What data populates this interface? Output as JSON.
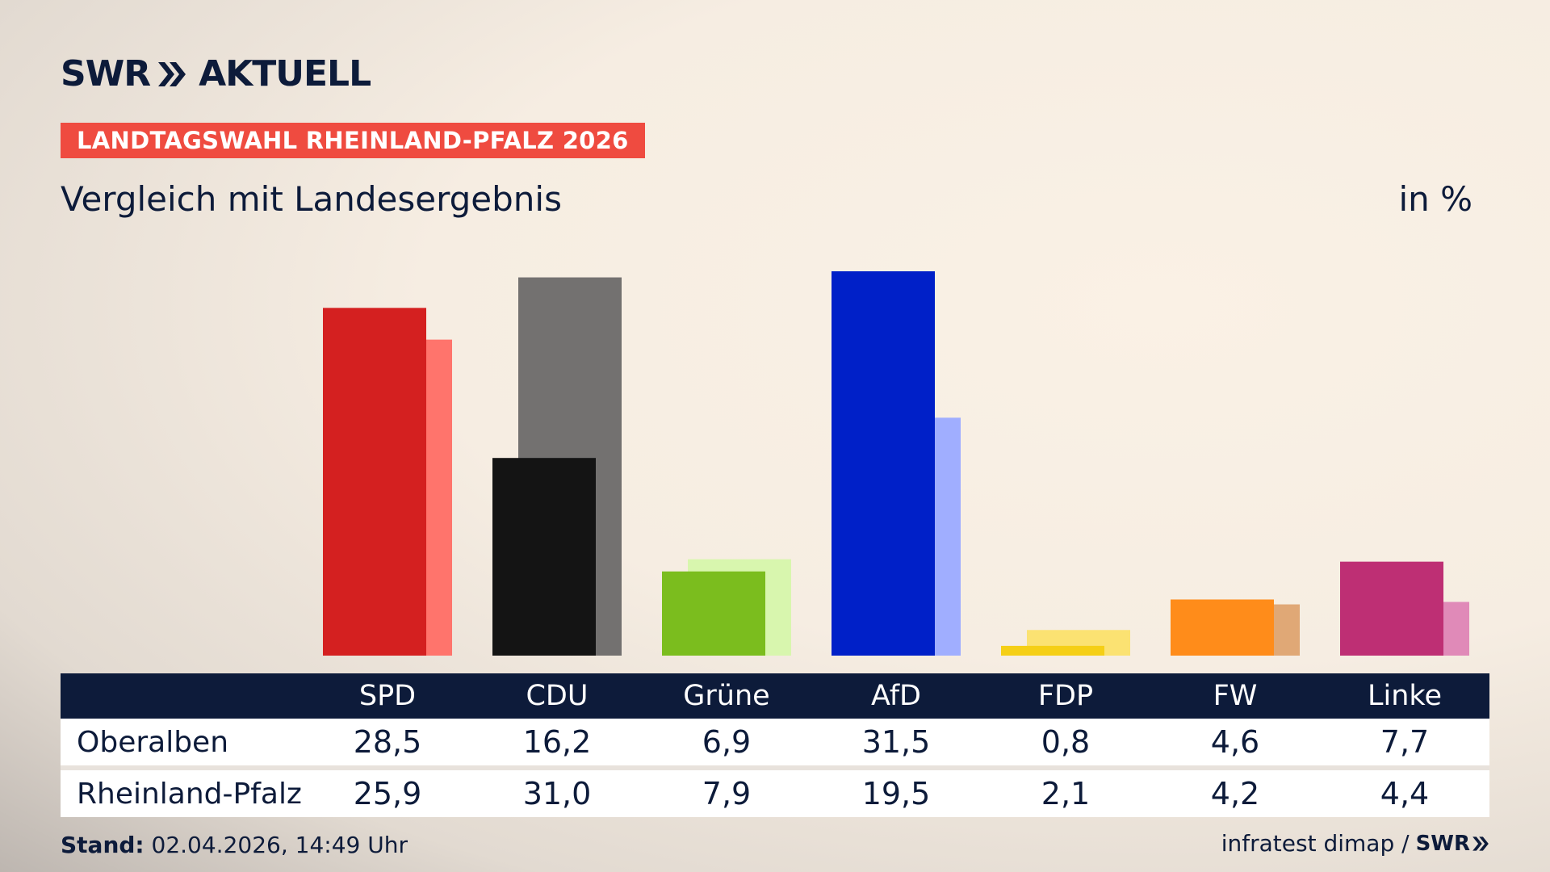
{
  "header": {
    "logo_text_left": "SWR",
    "logo_text_right": "AKTUELL",
    "badge": "LANDTAGSWAHL RHEINLAND-PFALZ 2026",
    "subtitle": "Vergleich mit Landesergebnis",
    "unit": "in %"
  },
  "colors": {
    "navy": "#0d1b3a",
    "badge_red": "#ef4b40"
  },
  "chart_data": {
    "type": "bar",
    "categories": [
      "SPD",
      "CDU",
      "Grüne",
      "AfD",
      "FDP",
      "FW",
      "Linke"
    ],
    "series": [
      {
        "name": "Oberalben",
        "values": [
          28.5,
          16.2,
          6.9,
          31.5,
          0.8,
          4.6,
          7.7
        ]
      },
      {
        "name": "Rheinland-Pfalz",
        "values": [
          25.9,
          31.0,
          7.9,
          19.5,
          2.1,
          4.2,
          4.4
        ]
      }
    ],
    "colors_local": [
      "#d42020",
      "#141414",
      "#7bbd1e",
      "#0020c8",
      "#f5cf16",
      "#ff8c1a",
      "#be2f74"
    ],
    "colors_state": [
      "#ff746c",
      "#737170",
      "#d8f6ae",
      "#a0aeff",
      "#fbe272",
      "#e0a876",
      "#e08ab8"
    ],
    "ylim": [
      0,
      35
    ]
  },
  "table": {
    "headers": [
      "SPD",
      "CDU",
      "Grüne",
      "AfD",
      "FDP",
      "FW",
      "Linke"
    ],
    "rows": [
      {
        "label": "Oberalben",
        "values": [
          "28,5",
          "16,2",
          "6,9",
          "31,5",
          "0,8",
          "4,6",
          "7,7"
        ]
      },
      {
        "label": "Rheinland-Pfalz",
        "values": [
          "25,9",
          "31,0",
          "7,9",
          "19,5",
          "2,1",
          "4,2",
          "4,4"
        ]
      }
    ]
  },
  "footer": {
    "stand_label": "Stand:",
    "stand_value": " 02.04.2026, 14:49 Uhr",
    "source": "infratest dimap /",
    "source_brand": "SWR"
  }
}
